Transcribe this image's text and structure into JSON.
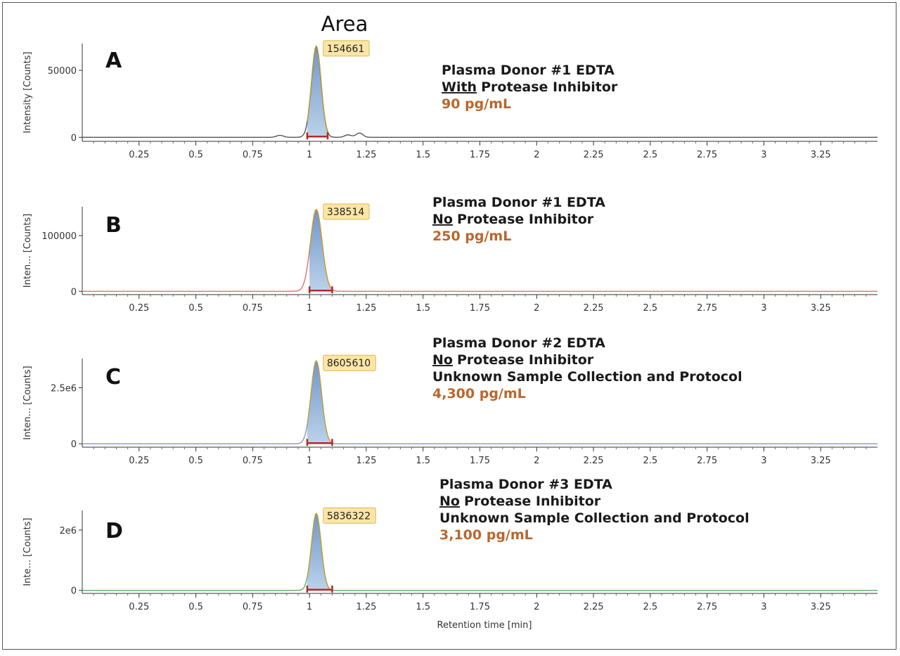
{
  "figure": {
    "area_title": "Area",
    "x_axis_title": "Retention time [min]"
  },
  "chart_data": [
    {
      "type": "line",
      "panel": "A",
      "ylabel": "Intensity [Counts]",
      "xlim": [
        0,
        3.5
      ],
      "ylim": [
        -3000,
        70000
      ],
      "yticks": [
        0,
        50000
      ],
      "ytick_labels": [
        "0",
        "50000"
      ],
      "xticks": [
        0.25,
        0.5,
        0.75,
        1,
        1.25,
        1.5,
        1.75,
        2,
        2.25,
        2.5,
        2.75,
        3,
        3.25
      ],
      "xtick_labels": [
        "0.25",
        "0.5",
        "0.75",
        "1",
        "1.25",
        "1.5",
        "1.75",
        "2",
        "2.25",
        "2.5",
        "2.75",
        "3",
        "3.25"
      ],
      "peak": {
        "rt": 1.03,
        "height": 68000,
        "width": 0.05,
        "start": 0.99,
        "end": 1.08,
        "area_label": "154661"
      },
      "minor_peaks": [
        {
          "rt": 0.87,
          "height": 1500
        },
        {
          "rt": 1.17,
          "height": 1800
        },
        {
          "rt": 1.22,
          "height": 3200
        }
      ],
      "line_color": "#555555",
      "annotation": {
        "line1": "Plasma Donor #1 EDTA",
        "line2_underlined": "With",
        "line2_rest": "Protease Inhibitor",
        "conc": "90 pg/mL"
      }
    },
    {
      "type": "line",
      "panel": "B",
      "ylabel": "Inten... [Counts]",
      "xlim": [
        0,
        3.5
      ],
      "ylim": [
        -6000,
        152000
      ],
      "yticks": [
        0,
        100000
      ],
      "ytick_labels": [
        "0",
        "100000"
      ],
      "xticks": [
        0.25,
        0.5,
        0.75,
        1,
        1.25,
        1.5,
        1.75,
        2,
        2.25,
        2.5,
        2.75,
        3,
        3.25
      ],
      "xtick_labels": [
        "0.25",
        "0.5",
        "0.75",
        "1",
        "1.25",
        "1.5",
        "1.75",
        "2",
        "2.25",
        "2.5",
        "2.75",
        "3",
        "3.25"
      ],
      "peak": {
        "rt": 1.03,
        "height": 147000,
        "width": 0.06,
        "start": 1.0,
        "end": 1.1,
        "area_label": "338514"
      },
      "minor_peaks": [],
      "line_color": "#e0706a",
      "annotation": {
        "line1": "Plasma Donor #1 EDTA",
        "line2_underlined": "No",
        "line2_rest": "Protease Inhibitor",
        "conc": "250 pg/mL"
      }
    },
    {
      "type": "line",
      "panel": "C",
      "ylabel": "Inten... [Counts]",
      "xlim": [
        0,
        3.5
      ],
      "ylim": [
        -150000,
        3800000
      ],
      "yticks": [
        0,
        2500000
      ],
      "ytick_labels": [
        "0",
        "2.5e6"
      ],
      "xticks": [
        0.25,
        0.5,
        0.75,
        1,
        1.25,
        1.5,
        1.75,
        2,
        2.25,
        2.5,
        2.75,
        3,
        3.25
      ],
      "xtick_labels": [
        "0.25",
        "0.5",
        "0.75",
        "1",
        "1.25",
        "1.5",
        "1.75",
        "2",
        "2.25",
        "2.5",
        "2.75",
        "3",
        "3.25"
      ],
      "peak": {
        "rt": 1.03,
        "height": 3700000,
        "width": 0.055,
        "start": 0.99,
        "end": 1.1,
        "area_label": "8605610"
      },
      "minor_peaks": [],
      "line_color": "#8e92c4",
      "annotation": {
        "line1": "Plasma Donor #2 EDTA",
        "line2_underlined": "No",
        "line2_rest": "Protease Inhibitor",
        "line3": "Unknown Sample Collection  and Protocol",
        "conc": "4,300 pg/mL"
      }
    },
    {
      "type": "line",
      "panel": "D",
      "ylabel": "Inte... [Counts]",
      "xlim": [
        0,
        3.5
      ],
      "ylim": [
        -100000,
        2650000
      ],
      "yticks": [
        0,
        2000000
      ],
      "ytick_labels": [
        "0",
        "2e6"
      ],
      "xticks": [
        0.25,
        0.5,
        0.75,
        1,
        1.25,
        1.5,
        1.75,
        2,
        2.25,
        2.5,
        2.75,
        3,
        3.25
      ],
      "xtick_labels": [
        "0.25",
        "0.5",
        "0.75",
        "1",
        "1.25",
        "1.5",
        "1.75",
        "2",
        "2.25",
        "2.5",
        "2.75",
        "3",
        "3.25"
      ],
      "peak": {
        "rt": 1.03,
        "height": 2550000,
        "width": 0.05,
        "start": 0.99,
        "end": 1.1,
        "area_label": "5836322"
      },
      "minor_peaks": [],
      "line_color": "#5fae5f",
      "annotation": {
        "line1": "Plasma Donor #3 EDTA",
        "line2_underlined": "No",
        "line2_rest": "Protease Inhibitor",
        "line3": "Unknown Sample Collection and Protocol",
        "conc": "3,100 pg/mL"
      }
    }
  ]
}
